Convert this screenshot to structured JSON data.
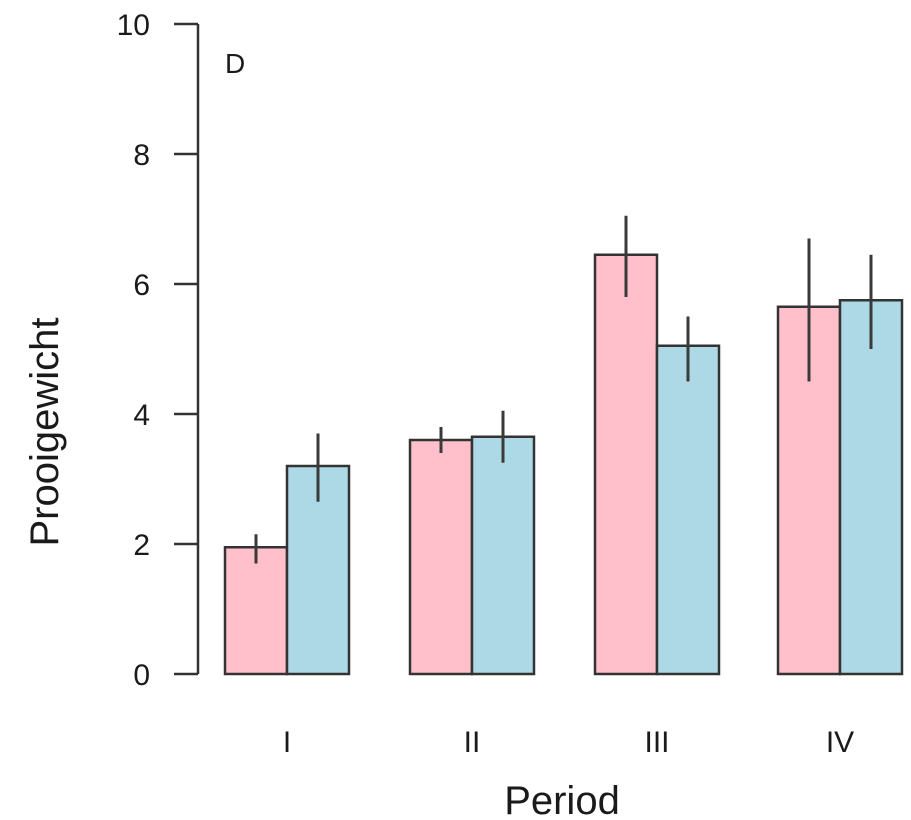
{
  "chart_data": {
    "type": "bar",
    "panel_label": "D",
    "xlabel": "Period",
    "ylabel": "Prooigewicht",
    "ylim": [
      0,
      10
    ],
    "yticks": [
      0,
      2,
      4,
      6,
      8,
      10
    ],
    "categories": [
      "I",
      "II",
      "III",
      "IV"
    ],
    "series": [
      {
        "color": "#ffc0cb",
        "values": [
          1.95,
          3.6,
          6.45,
          5.65
        ],
        "err_low": [
          1.7,
          3.4,
          5.8,
          4.5
        ],
        "err_high": [
          2.15,
          3.8,
          7.05,
          6.7
        ]
      },
      {
        "color": "#add8e6",
        "values": [
          3.2,
          3.65,
          5.05,
          5.75
        ],
        "err_low": [
          2.65,
          3.25,
          4.5,
          5.0
        ],
        "err_high": [
          3.7,
          4.05,
          5.5,
          6.45
        ]
      }
    ],
    "grid": false,
    "legend": "none"
  }
}
